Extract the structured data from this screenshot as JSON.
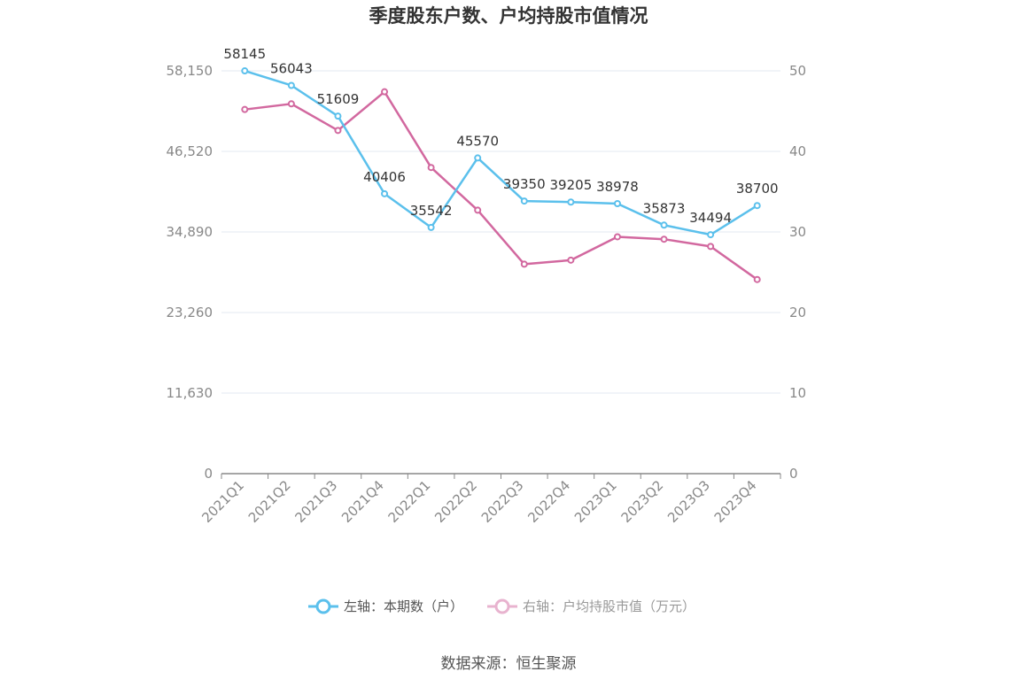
{
  "chart_data": {
    "type": "line",
    "title": "季度股东户数、户均持股市值情况",
    "categories": [
      "2021Q1",
      "2021Q2",
      "2021Q3",
      "2021Q4",
      "2022Q1",
      "2022Q2",
      "2022Q3",
      "2022Q4",
      "2023Q1",
      "2023Q2",
      "2023Q3",
      "2023Q4"
    ],
    "left_axis": {
      "ticks": [
        "0",
        "11,630",
        "23,260",
        "34,890",
        "46,520",
        "58,150"
      ],
      "ylim": [
        0,
        58150
      ]
    },
    "right_axis": {
      "ticks": [
        "0",
        "10",
        "20",
        "30",
        "40",
        "50"
      ],
      "ylim": [
        0,
        50
      ]
    },
    "grid": true,
    "legend_position": "bottom",
    "series": [
      {
        "name": "左轴：本期数（户）",
        "axis": "left",
        "color": "#5bc0ec",
        "values": [
          58145,
          56043,
          51609,
          40406,
          35542,
          45570,
          39350,
          39205,
          38978,
          35873,
          34494,
          38700
        ],
        "labels": [
          "58145",
          "56043",
          "51609",
          "40406",
          "35542",
          "45570",
          "39350",
          "39205",
          "38978",
          "35873",
          "34494",
          "38700"
        ]
      },
      {
        "name": "右轴：户均持股市值（万元）",
        "axis": "right",
        "color": "#d2689f",
        "values": [
          45.2,
          45.9,
          42.6,
          47.4,
          38.0,
          32.7,
          26.0,
          26.5,
          29.4,
          29.1,
          28.2,
          24.1
        ]
      }
    ],
    "source": "数据来源：恒生聚源"
  }
}
